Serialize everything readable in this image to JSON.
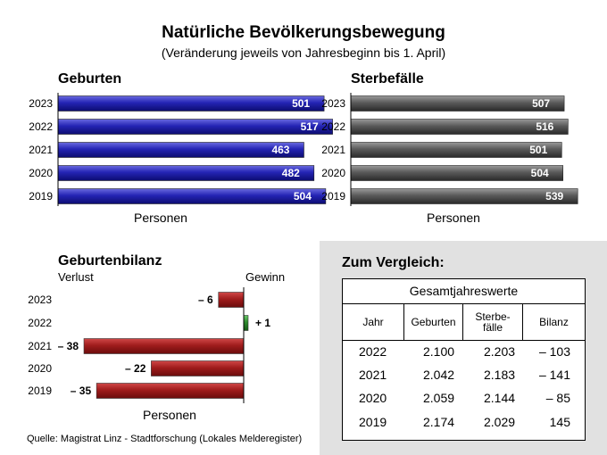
{
  "header": {
    "title": "Natürliche Bevölkerungsbewegung",
    "subtitle": "(Veränderung jeweils von Jahresbeginn bis 1. April)"
  },
  "colors": {
    "births_bar": "#2222aa",
    "deaths_bar": "#555555",
    "balance_negative": "#a01c1c",
    "balance_positive": "#2e8b2e",
    "panel_bg": "#e1e1e1"
  },
  "chart_data": [
    {
      "type": "bar",
      "orientation": "horizontal",
      "title": "Geburten",
      "xlabel": "Personen",
      "categories": [
        "2023",
        "2022",
        "2021",
        "2020",
        "2019"
      ],
      "values": [
        501,
        517,
        463,
        482,
        504
      ],
      "value_labels": [
        "501",
        "517",
        "463",
        "482",
        "504"
      ],
      "xlim": [
        0,
        600
      ],
      "grid": false
    },
    {
      "type": "bar",
      "orientation": "horizontal",
      "title": "Sterbefälle",
      "xlabel": "Personen",
      "categories": [
        "2023",
        "2022",
        "2021",
        "2020",
        "2019"
      ],
      "values": [
        507,
        516,
        501,
        504,
        539
      ],
      "value_labels": [
        "507",
        "516",
        "501",
        "504",
        "539"
      ],
      "xlim": [
        0,
        600
      ],
      "grid": false
    },
    {
      "type": "bar",
      "orientation": "horizontal",
      "title": "Geburtenbilanz",
      "xlabel": "Personen",
      "left_label": "Verlust",
      "right_label": "Gewinn",
      "categories": [
        "2023",
        "2022",
        "2021",
        "2020",
        "2019"
      ],
      "values": [
        -6,
        1,
        -38,
        -22,
        -35
      ],
      "value_labels": [
        "– 6",
        "+ 1",
        "– 38",
        "– 22",
        "– 35"
      ],
      "xlim": [
        -40,
        5
      ],
      "grid": false
    },
    {
      "type": "table",
      "panel_title": "Zum Vergleich:",
      "title": "Gesamtjahreswerte",
      "columns": [
        "Jahr",
        "Geburten",
        "Sterbe-\nfälle",
        "Bilanz"
      ],
      "rows": [
        [
          "2022",
          "2.100",
          "2.203",
          "– 103"
        ],
        [
          "2021",
          "2.042",
          "2.183",
          "– 141"
        ],
        [
          "2020",
          "2.059",
          "2.144",
          "– 85"
        ],
        [
          "2019",
          "2.174",
          "2.029",
          "145"
        ]
      ]
    }
  ],
  "footer": {
    "source": "Quelle: Magistrat Linz - Stadtforschung (Lokales Melderegister)"
  }
}
